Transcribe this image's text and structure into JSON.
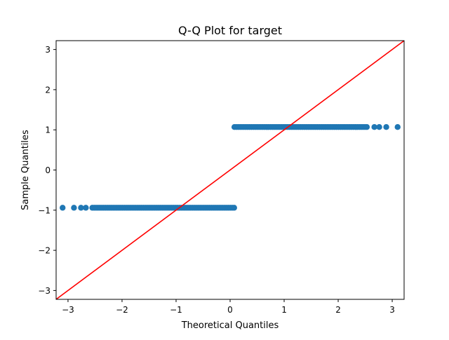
{
  "chart_data": {
    "type": "scatter",
    "title": "Q-Q Plot for target",
    "xlabel": "Theoretical Quantiles",
    "ylabel": "Sample Quantiles",
    "xlim": [
      -3.22,
      3.22
    ],
    "ylim": [
      -3.22,
      3.22
    ],
    "x_ticks": [
      -3,
      -2,
      -1,
      0,
      1,
      2,
      3
    ],
    "y_ticks": [
      -3,
      -2,
      -1,
      0,
      1,
      2,
      3
    ],
    "x_tick_labels": [
      "−3",
      "−2",
      "−1",
      "0",
      "1",
      "2",
      "3"
    ],
    "y_tick_labels": [
      "−3",
      "−2",
      "−1",
      "0",
      "1",
      "2",
      "3"
    ],
    "grid": false,
    "series": [
      {
        "marker_color": "#1f77b4",
        "groups": [
          {
            "y": -0.94,
            "x_dense_range": [
              -2.55,
              0.08
            ],
            "x_outliers": [
              -3.1,
              -2.89,
              -2.76,
              -2.67
            ]
          },
          {
            "y": 1.07,
            "x_dense_range": [
              0.08,
              2.55
            ],
            "x_outliers": [
              2.67,
              2.76,
              2.89,
              3.1
            ]
          }
        ]
      }
    ],
    "reference_line": {
      "color": "#ff0000",
      "from": [
        -3.22,
        -3.22
      ],
      "to": [
        3.22,
        3.22
      ]
    }
  }
}
